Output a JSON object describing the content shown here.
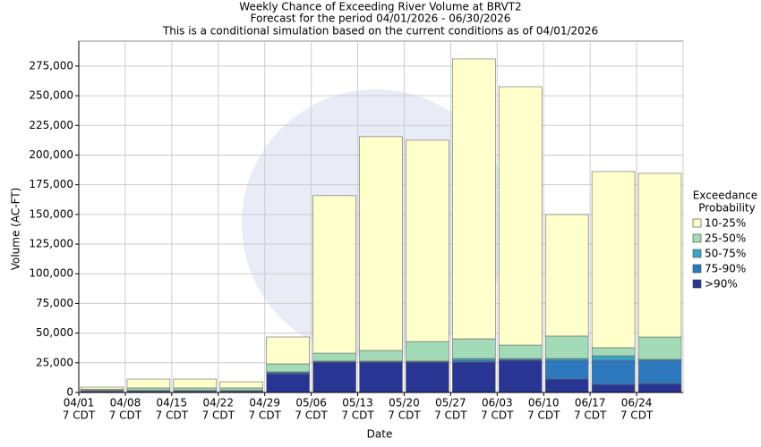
{
  "chart_data": {
    "type": "stacked_bar",
    "title": "Weekly Chance of Exceeding River Volume at BRVT2",
    "subtitle": "Forecast for the period 04/01/2026 - 06/30/2026",
    "note": "This is a conditional simulation based on the current conditions as of 04/01/2026",
    "x_label": "Date",
    "y_label": "Volume (AC-FT)",
    "categories": [
      "04/01",
      "04/08",
      "04/15",
      "04/22",
      "04/29",
      "05/06",
      "05/13",
      "05/20",
      "05/27",
      "06/03",
      "06/10",
      "06/17",
      "06/24"
    ],
    "category_time": "7 CDT",
    "legend_title": [
      "Exceedance",
      "Probability"
    ],
    "series": [
      {
        "name": ">90%",
        "color": "#283593",
        "values": [
          1000,
          1000,
          1000,
          1000,
          15800,
          25600,
          25600,
          25600,
          25600,
          27100,
          11300,
          6800,
          7500
        ]
      },
      {
        "name": "75-90%",
        "color": "#2e78bd",
        "values": [
          500,
          500,
          500,
          500,
          1000,
          500,
          500,
          500,
          1500,
          500,
          15800,
          20300,
          19600
        ]
      },
      {
        "name": "50-75%",
        "color": "#3ca5c2",
        "values": [
          300,
          300,
          300,
          300,
          500,
          300,
          300,
          300,
          1500,
          1000,
          1500,
          3800,
          800
        ]
      },
      {
        "name": "25-50%",
        "color": "#a3dbb8",
        "values": [
          1000,
          2000,
          2000,
          2000,
          6800,
          6700,
          9000,
          16500,
          16600,
          11300,
          18900,
          6800,
          18800
        ]
      },
      {
        "name": "10-25%",
        "color": "#ffffcc",
        "values": [
          1700,
          7500,
          7500,
          5200,
          22600,
          132700,
          180100,
          169600,
          235800,
          217700,
          102400,
          148400,
          137900
        ]
      }
    ],
    "ylim": [
      0,
      296000
    ],
    "yticks": [
      0,
      {
        "value": 25000,
        "label": "25,000"
      },
      {
        "value": 50000,
        "label": "50,000"
      },
      {
        "value": 75000,
        "label": "75,000"
      },
      {
        "value": 100000,
        "label": "100,000"
      },
      {
        "value": 125000,
        "label": "125,000"
      },
      {
        "value": 150000,
        "label": "150,000"
      },
      {
        "value": 175000,
        "label": "175,000"
      },
      {
        "value": 200000,
        "label": "200,000"
      },
      {
        "value": 225000,
        "label": "225,000"
      },
      {
        "value": 250000,
        "label": "250,000"
      },
      {
        "value": 275000,
        "label": "275,000"
      }
    ],
    "grid": true
  }
}
